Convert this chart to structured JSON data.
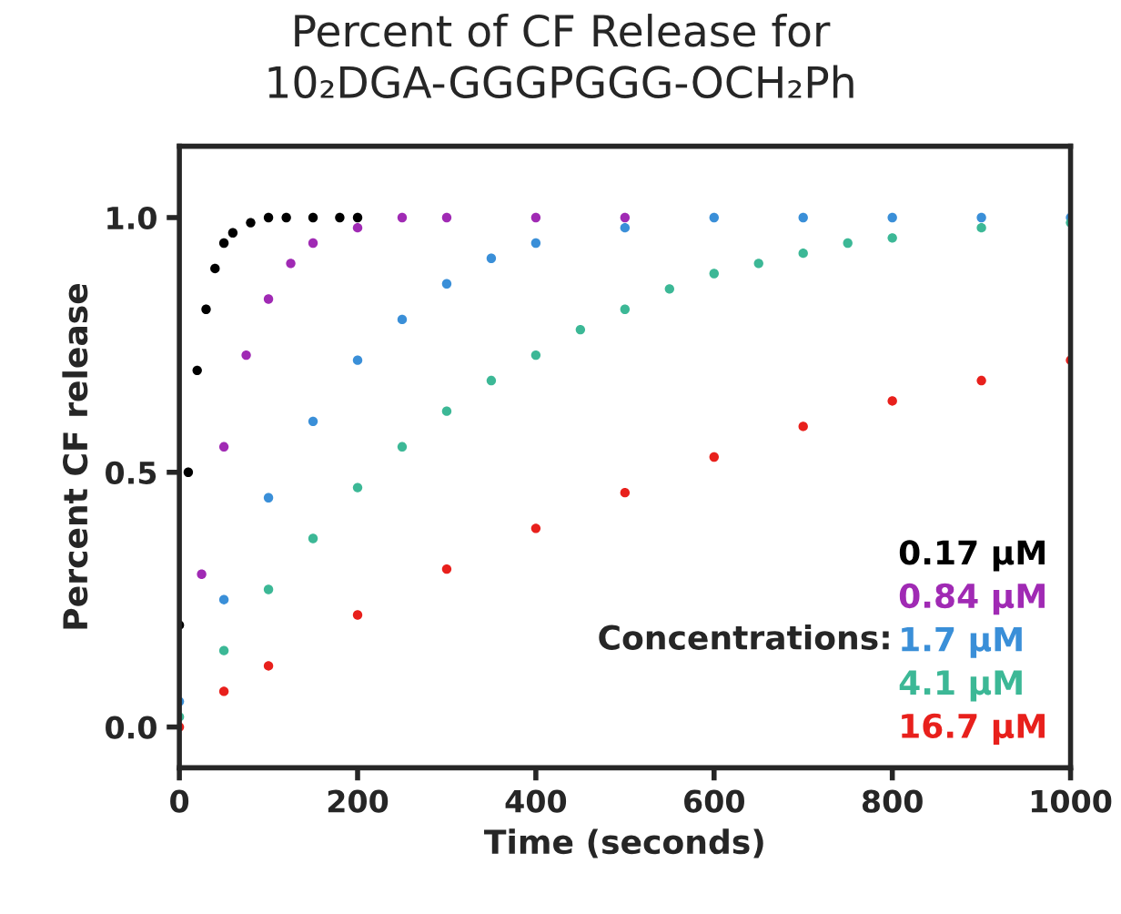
{
  "chart_data": {
    "type": "scatter",
    "title": "Percent of CF Release for\n10₂DGA-GGGPGGG-OCH₂Ph",
    "xlabel": "Time (seconds)",
    "ylabel": "Percent CF release",
    "xlim": [
      0,
      1000
    ],
    "ylim": [
      -0.08,
      1.14
    ],
    "xticks": [
      0,
      200,
      400,
      600,
      800,
      1000
    ],
    "yticks": [
      {
        "value": 0,
        "label": "0.0"
      },
      {
        "value": 0.5,
        "label": "0.5"
      },
      {
        "value": 1,
        "label": "1.0"
      }
    ],
    "grid": false,
    "legend": "bottom right",
    "marker": "circle",
    "annotations": [
      "Concentrations:"
    ],
    "series": [
      {
        "name": "0.17 µM",
        "color": "#000000",
        "x": [
          0,
          10,
          20,
          30,
          40,
          50,
          60,
          80,
          100,
          120,
          150,
          180,
          200
        ],
        "values": [
          0.2,
          0.5,
          0.7,
          0.82,
          0.9,
          0.95,
          0.97,
          0.99,
          1.0,
          1.0,
          1.0,
          1.0,
          1.0
        ]
      },
      {
        "name": "0.84 µM",
        "color": "#a02ab4",
        "x": [
          25,
          50,
          75,
          100,
          125,
          150,
          200,
          250,
          300,
          400,
          500
        ],
        "values": [
          0.3,
          0.55,
          0.73,
          0.84,
          0.91,
          0.95,
          0.98,
          1.0,
          1.0,
          1.0,
          1.0
        ]
      },
      {
        "name": "1.7 µM",
        "color": "#3a8fd8",
        "x": [
          0,
          50,
          100,
          150,
          200,
          250,
          300,
          350,
          400,
          500,
          600,
          700,
          800,
          900,
          1000
        ],
        "values": [
          0.05,
          0.25,
          0.45,
          0.6,
          0.72,
          0.8,
          0.87,
          0.92,
          0.95,
          0.98,
          1.0,
          1.0,
          1.0,
          1.0,
          1.0
        ]
      },
      {
        "name": "4.1 µM",
        "color": "#3cb896",
        "x": [
          0,
          50,
          100,
          150,
          200,
          250,
          300,
          350,
          400,
          450,
          500,
          550,
          600,
          650,
          700,
          750,
          800,
          900,
          1000
        ],
        "values": [
          0.02,
          0.15,
          0.27,
          0.37,
          0.47,
          0.55,
          0.62,
          0.68,
          0.73,
          0.78,
          0.82,
          0.86,
          0.89,
          0.91,
          0.93,
          0.95,
          0.96,
          0.98,
          0.99
        ]
      },
      {
        "name": "16.7 µM",
        "color": "#e8201c",
        "x": [
          0,
          50,
          100,
          200,
          300,
          400,
          500,
          600,
          700,
          800,
          900,
          1000
        ],
        "values": [
          0.0,
          0.07,
          0.12,
          0.22,
          0.31,
          0.39,
          0.46,
          0.53,
          0.59,
          0.64,
          0.68,
          0.72
        ]
      }
    ]
  }
}
